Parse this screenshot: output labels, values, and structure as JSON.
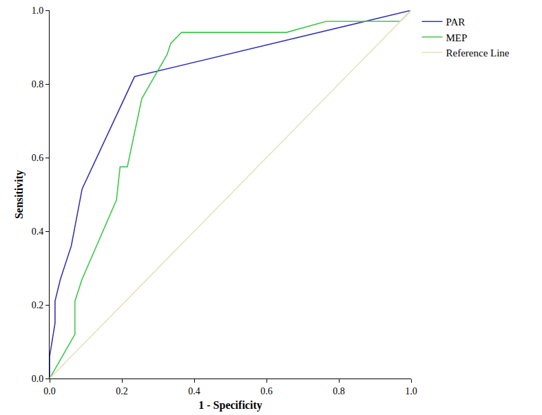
{
  "chart_data": {
    "type": "line",
    "x_label": "1 - Specificity",
    "y_label": "Sensitivity",
    "xlim": [
      0,
      1
    ],
    "ylim": [
      0,
      1
    ],
    "xticks": [
      {
        "value": 0,
        "label": "0.0"
      },
      0.2,
      0.4,
      0.6,
      0.8,
      {
        "value": 1,
        "label": "1.0"
      }
    ],
    "yticks": [
      {
        "value": 0,
        "label": "0.0"
      },
      0.2,
      0.4,
      0.6,
      0.8,
      {
        "value": 1,
        "label": "1.0"
      }
    ],
    "grid": false,
    "legend": "upper right",
    "series": [
      {
        "name": "PAR",
        "color": "#3434b8",
        "x": [
          0,
          0,
          0.015,
          0.015,
          0.03,
          0.06,
          0.09,
          0.235,
          1
        ],
        "values": [
          0,
          0.06,
          0.15,
          0.21,
          0.27,
          0.36,
          0.515,
          0.82,
          1
        ]
      },
      {
        "name": "MEP",
        "color": "#3cc84a",
        "x": [
          0,
          0.07,
          0.07,
          0.09,
          0.185,
          0.195,
          0.215,
          0.255,
          0.325,
          0.335,
          0.365,
          0.655,
          0.765,
          0.97,
          1
        ],
        "values": [
          0,
          0.12,
          0.21,
          0.27,
          0.485,
          0.575,
          0.575,
          0.76,
          0.88,
          0.91,
          0.94,
          0.94,
          0.97,
          0.97,
          1
        ]
      },
      {
        "name": "Reference Line",
        "color": "#e6e2bc",
        "x": [
          0,
          1
        ],
        "values": [
          0,
          1
        ]
      }
    ]
  }
}
